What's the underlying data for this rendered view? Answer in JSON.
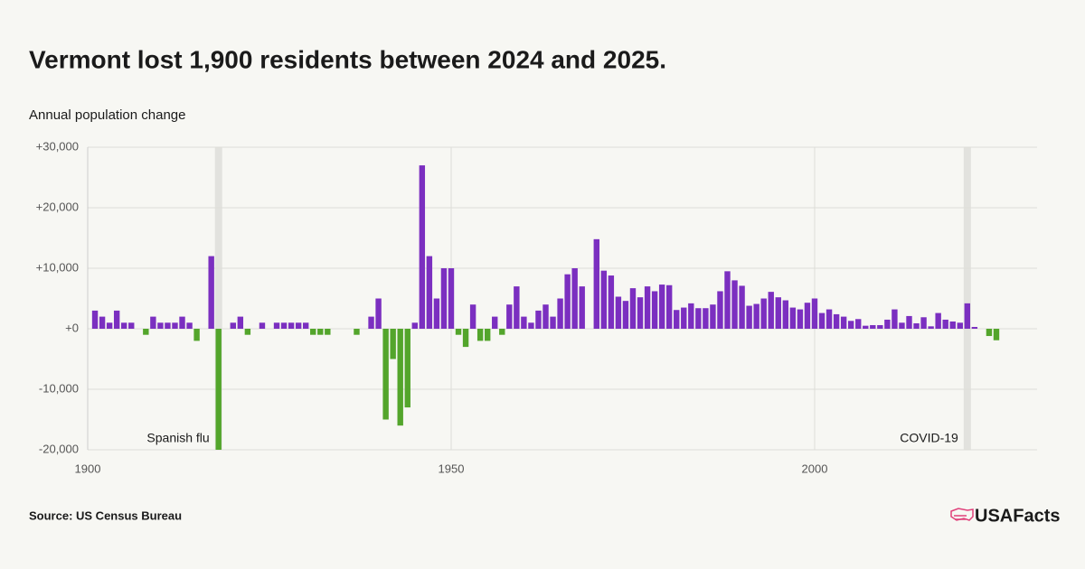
{
  "chart_data": {
    "type": "bar",
    "title": "Vermont lost 1,900 residents between 2024 and 2025.",
    "subtitle": "Annual population change",
    "source": "Source: US Census Bureau",
    "logo": "USAFacts",
    "x": [
      1901,
      1902,
      1903,
      1904,
      1905,
      1906,
      1907,
      1908,
      1909,
      1910,
      1911,
      1912,
      1913,
      1914,
      1915,
      1916,
      1917,
      1918,
      1919,
      1920,
      1921,
      1922,
      1923,
      1924,
      1925,
      1926,
      1927,
      1928,
      1929,
      1930,
      1931,
      1932,
      1933,
      1934,
      1935,
      1936,
      1937,
      1938,
      1939,
      1940,
      1941,
      1942,
      1943,
      1944,
      1945,
      1946,
      1947,
      1948,
      1949,
      1950,
      1951,
      1952,
      1953,
      1954,
      1955,
      1956,
      1957,
      1958,
      1959,
      1960,
      1961,
      1962,
      1963,
      1964,
      1965,
      1966,
      1967,
      1968,
      1969,
      1970,
      1971,
      1972,
      1973,
      1974,
      1975,
      1976,
      1977,
      1978,
      1979,
      1980,
      1981,
      1982,
      1983,
      1984,
      1985,
      1986,
      1987,
      1988,
      1989,
      1990,
      1991,
      1992,
      1993,
      1994,
      1995,
      1996,
      1997,
      1998,
      1999,
      2000,
      2001,
      2002,
      2003,
      2004,
      2005,
      2006,
      2007,
      2008,
      2009,
      2010,
      2011,
      2012,
      2013,
      2014,
      2015,
      2016,
      2017,
      2018,
      2019,
      2020,
      2021,
      2022,
      2023,
      2024,
      2025
    ],
    "values": [
      3000,
      2000,
      1000,
      3000,
      1000,
      1000,
      0,
      -1000,
      2000,
      1000,
      1000,
      1000,
      2000,
      1000,
      -2000,
      0,
      12000,
      -20000,
      0,
      1000,
      2000,
      -1000,
      0,
      1000,
      0,
      1000,
      1000,
      1000,
      1000,
      1000,
      -1000,
      -1000,
      -1000,
      0,
      0,
      0,
      -1000,
      0,
      2000,
      5000,
      -15000,
      -5000,
      -16000,
      -13000,
      1000,
      27000,
      12000,
      5000,
      10000,
      10000,
      -1000,
      -3000,
      4000,
      -2000,
      -2000,
      2000,
      -1000,
      4000,
      7000,
      2000,
      1000,
      3000,
      4000,
      2000,
      5000,
      9000,
      10000,
      7000,
      0,
      14800,
      9600,
      8800,
      5300,
      4600,
      6700,
      5200,
      7000,
      6200,
      7300,
      7200,
      3100,
      3500,
      4200,
      3400,
      3400,
      4000,
      6200,
      9500,
      8000,
      7100,
      3800,
      4100,
      5000,
      6100,
      5200,
      4700,
      3500,
      3200,
      4300,
      5000,
      2600,
      3200,
      2400,
      2000,
      1300,
      1600,
      500,
      600,
      600,
      1500,
      3200,
      1000,
      2100,
      900,
      1900,
      400,
      2600,
      1500,
      1200,
      1000,
      4200,
      300,
      0,
      -1200,
      -1900
    ],
    "positive_color": "#7b2fc0",
    "negative_color": "#53a52b",
    "xlim": [
      1900,
      2030.6
    ],
    "xticks": [
      1900,
      1950,
      2000
    ],
    "ylim": [
      -20000,
      30000
    ],
    "yticks": [
      {
        "value": 30000,
        "label": "+30,000"
      },
      {
        "value": 20000,
        "label": "+20,000"
      },
      {
        "value": 10000,
        "label": "+10,000"
      },
      {
        "value": 0,
        "label": "+0"
      },
      {
        "value": -10000,
        "label": "-10,000"
      },
      {
        "value": -20000,
        "label": "-20,000"
      }
    ],
    "grid": true,
    "annotations": [
      {
        "label": "Spanish flu",
        "x": 1918
      },
      {
        "label": "COVID-19",
        "x": 2021
      }
    ]
  }
}
